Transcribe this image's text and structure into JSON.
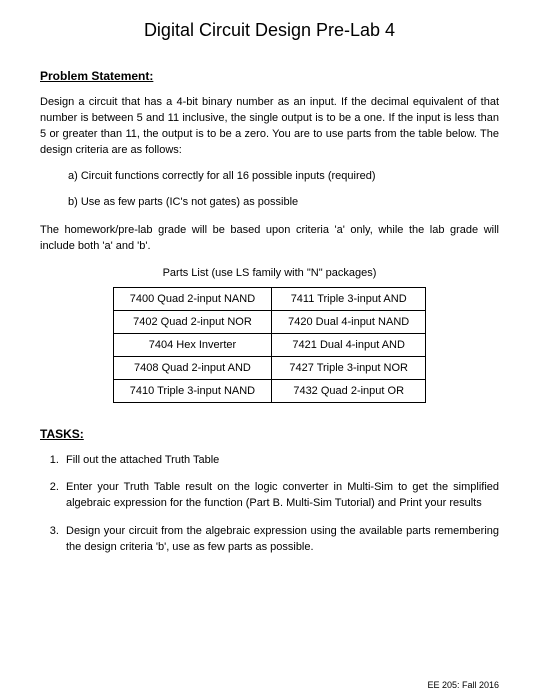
{
  "title": "Digital Circuit Design Pre-Lab 4",
  "problem_heading": "Problem Statement:",
  "problem_body": "Design a circuit that has a 4-bit binary number as an input. If the decimal equivalent of that number is between 5 and 11 inclusive, the single output is to be a one. If the input is less than 5 or greater than 11, the output is to be a zero. You are to use parts from the table below. The design criteria are as follows:",
  "criteria": {
    "a": "a) Circuit functions correctly for all 16 possible inputs (required)",
    "b": "b) Use as few parts (IC's not gates) as possible"
  },
  "grading_note": "The homework/pre-lab grade will be based upon criteria 'a' only, while the lab grade will include both 'a' and 'b'.",
  "parts_caption": "Parts List (use LS family with \"N\" packages)",
  "parts_table": {
    "rows": [
      [
        "7400 Quad 2-input NAND",
        "7411 Triple 3-input AND"
      ],
      [
        "7402 Quad 2-input NOR",
        "7420 Dual 4-input NAND"
      ],
      [
        "7404 Hex Inverter",
        "7421 Dual 4-input AND"
      ],
      [
        "7408 Quad 2-input AND",
        "7427 Triple 3-input NOR"
      ],
      [
        "7410 Triple 3-input NAND",
        "7432 Quad 2-input OR"
      ]
    ]
  },
  "tasks_heading": "TASKS:",
  "tasks": {
    "t1": "Fill out the attached Truth Table",
    "t2": "Enter your Truth Table result on the logic converter in Multi-Sim to get the simplified algebraic expression for the function (Part B. Multi-Sim Tutorial) and Print your results",
    "t3": "Design your circuit from the algebraic expression using the available parts remembering the design criteria 'b', use as few parts as possible."
  },
  "footer": "EE 205: Fall 2016"
}
